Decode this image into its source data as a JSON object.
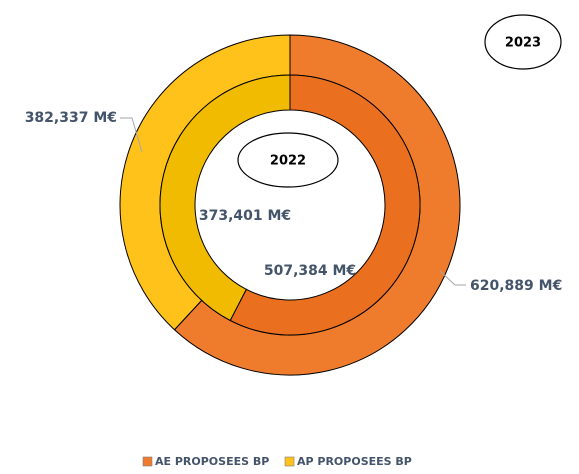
{
  "chart_data": {
    "type": "doughnut",
    "categories": [
      "AE PROPOSEES BP",
      "AP PROPOSEES BP"
    ],
    "series": [
      {
        "name": "2023",
        "colors": [
          "#ef7c2c",
          "#ffc21a"
        ],
        "values": [
          620.889,
          382.337
        ],
        "value_labels": [
          "620,889 M€",
          "382,337 M€"
        ]
      },
      {
        "name": "2022",
        "colors": [
          "#ea7020",
          "#f0bb00"
        ],
        "values": [
          507.384,
          373.401
        ],
        "value_labels": [
          "507,384 M€",
          "373,401 M€"
        ]
      }
    ],
    "legend": "bottom"
  }
}
